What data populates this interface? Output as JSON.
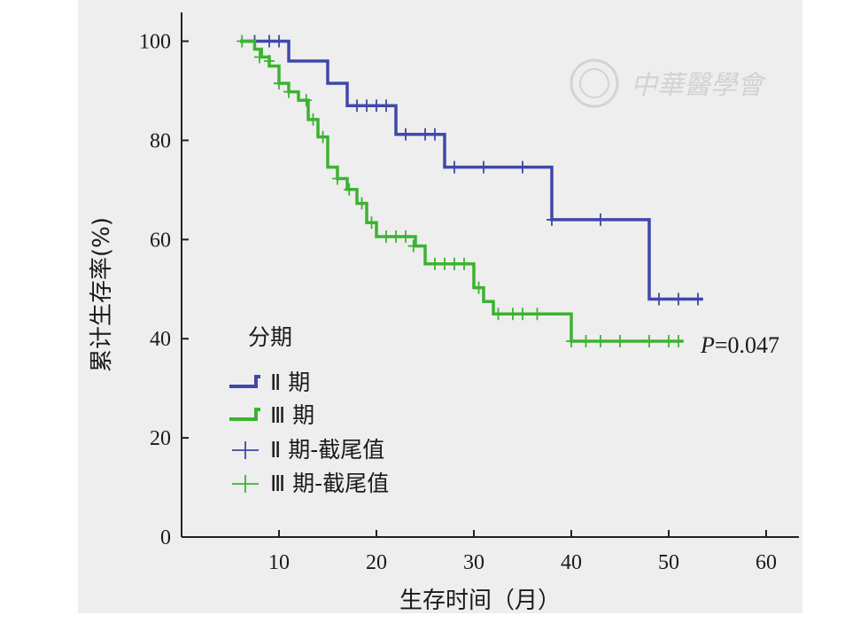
{
  "chart_data": {
    "type": "line",
    "step": true,
    "xlabel": "生存时间（月）",
    "ylabel": "累计生存率(%)",
    "xlim": [
      0,
      63
    ],
    "ylim": [
      0,
      105
    ],
    "x_ticks": [
      10,
      20,
      30,
      40,
      50,
      60
    ],
    "y_ticks": [
      0,
      20,
      40,
      60,
      80,
      100
    ],
    "grid": false,
    "legend": {
      "title": "分期",
      "position": "bottom-left",
      "entries": [
        "Ⅱ 期",
        "Ⅲ 期",
        "Ⅱ 期-截尾值",
        "Ⅲ 期-截尾值"
      ]
    },
    "annotation": {
      "prefix": "P",
      "text": "=0.047",
      "x": 56,
      "y": 39.5
    },
    "series": [
      {
        "name": "Ⅱ 期",
        "color": "#3f48a8",
        "steps": [
          [
            6,
            100
          ],
          [
            11,
            96
          ],
          [
            15,
            91.5
          ],
          [
            17,
            87
          ],
          [
            22,
            81.2
          ],
          [
            27,
            74.6
          ],
          [
            38,
            64
          ],
          [
            48,
            48
          ],
          [
            53.5,
            48
          ]
        ],
        "censored": [
          [
            7.5,
            100
          ],
          [
            9,
            100
          ],
          [
            10,
            100
          ],
          [
            18,
            87
          ],
          [
            19,
            87
          ],
          [
            20,
            87
          ],
          [
            21,
            87
          ],
          [
            23,
            81.2
          ],
          [
            25,
            81.2
          ],
          [
            26,
            81.2
          ],
          [
            28,
            74.6
          ],
          [
            31,
            74.6
          ],
          [
            35,
            74.6
          ],
          [
            38,
            64
          ],
          [
            43,
            64
          ],
          [
            49,
            48
          ],
          [
            51,
            48
          ],
          [
            53,
            48
          ]
        ]
      },
      {
        "name": "Ⅲ 期",
        "color": "#3cb332",
        "steps": [
          [
            6,
            100
          ],
          [
            7.5,
            98.4
          ],
          [
            8.2,
            96.8
          ],
          [
            9,
            95
          ],
          [
            10,
            91.5
          ],
          [
            11,
            89.8
          ],
          [
            12,
            88.1
          ],
          [
            13,
            84.2
          ],
          [
            14,
            80.7
          ],
          [
            15,
            74.6
          ],
          [
            16,
            72.3
          ],
          [
            17,
            70.1
          ],
          [
            18,
            67.3
          ],
          [
            19,
            63.4
          ],
          [
            20,
            60.6
          ],
          [
            24,
            58.7
          ],
          [
            25,
            55.1
          ],
          [
            30,
            50.3
          ],
          [
            31,
            47.5
          ],
          [
            32,
            45
          ],
          [
            40,
            39.5
          ],
          [
            51.5,
            39.5
          ]
        ],
        "censored": [
          [
            6.2,
            100
          ],
          [
            8,
            96.8
          ],
          [
            9,
            96
          ],
          [
            10,
            91.5
          ],
          [
            11,
            89.8
          ],
          [
            12.8,
            88.1
          ],
          [
            13.5,
            84.2
          ],
          [
            14.5,
            80.7
          ],
          [
            16,
            72.3
          ],
          [
            17.2,
            70.1
          ],
          [
            18.5,
            67.3
          ],
          [
            19.5,
            63.4
          ],
          [
            21,
            60.6
          ],
          [
            22,
            60.6
          ],
          [
            23,
            60.6
          ],
          [
            23.8,
            58.7
          ],
          [
            26,
            55.1
          ],
          [
            27,
            55.1
          ],
          [
            28,
            55.1
          ],
          [
            29,
            55.1
          ],
          [
            30.5,
            50.3
          ],
          [
            32.5,
            45
          ],
          [
            34,
            45
          ],
          [
            35,
            45
          ],
          [
            36.5,
            45
          ],
          [
            40,
            39.5
          ],
          [
            41.5,
            39.5
          ],
          [
            43,
            39.5
          ],
          [
            45,
            39.5
          ],
          [
            48,
            39.5
          ],
          [
            50,
            39.5
          ],
          [
            51,
            39.5
          ]
        ]
      }
    ]
  },
  "watermark": {
    "text": "中華醫學會"
  }
}
